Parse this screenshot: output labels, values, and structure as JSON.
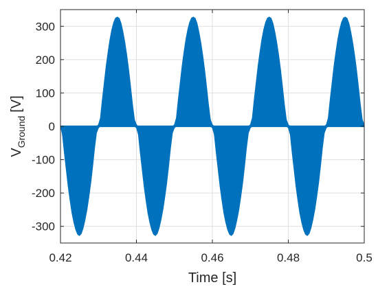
{
  "chart_data": {
    "type": "area",
    "xlabel": "Time [s]",
    "ylabel": {
      "main": "V",
      "subscript": "Ground",
      "unit": "[V]"
    },
    "xlim": [
      0.42,
      0.5
    ],
    "ylim": [
      -350,
      350
    ],
    "xticks": [
      "0.42",
      "0.44",
      "0.46",
      "0.48",
      "0.5"
    ],
    "yticks": [
      "-300",
      "-200",
      "-100",
      "0",
      "100",
      "200",
      "300"
    ],
    "grid": true,
    "color": "#0072BD",
    "series": [
      {
        "fill_between": true,
        "points": [
          [
            0.42,
            0,
            0
          ],
          [
            0.4205,
            -25,
            0
          ],
          [
            0.421,
            -80,
            0
          ],
          [
            0.4215,
            -130,
            0
          ],
          [
            0.422,
            -180,
            0
          ],
          [
            0.4225,
            -222,
            0
          ],
          [
            0.423,
            -260,
            0
          ],
          [
            0.4235,
            -288,
            0
          ],
          [
            0.424,
            -310,
            0
          ],
          [
            0.4245,
            -324,
            0
          ],
          [
            0.425,
            -328,
            0
          ],
          [
            0.4255,
            -322,
            0
          ],
          [
            0.426,
            -305,
            0
          ],
          [
            0.4265,
            -280,
            0
          ],
          [
            0.427,
            -250,
            0
          ],
          [
            0.4275,
            -212,
            0
          ],
          [
            0.428,
            -170,
            0
          ],
          [
            0.4285,
            -120,
            0
          ],
          [
            0.429,
            -65,
            0
          ],
          [
            0.4295,
            -20,
            0
          ],
          [
            0.43,
            -5,
            5
          ],
          [
            0.4305,
            0,
            25
          ],
          [
            0.431,
            0,
            80
          ],
          [
            0.4315,
            0,
            130
          ],
          [
            0.432,
            0,
            180
          ],
          [
            0.4325,
            0,
            222
          ],
          [
            0.433,
            0,
            260
          ],
          [
            0.4335,
            0,
            290
          ],
          [
            0.434,
            0,
            312
          ],
          [
            0.4345,
            0,
            325
          ],
          [
            0.435,
            0,
            328
          ],
          [
            0.4355,
            0,
            324
          ],
          [
            0.436,
            0,
            308
          ],
          [
            0.4365,
            0,
            282
          ],
          [
            0.437,
            0,
            250
          ],
          [
            0.4375,
            0,
            212
          ],
          [
            0.438,
            0,
            168
          ],
          [
            0.4385,
            0,
            118
          ],
          [
            0.439,
            0,
            65
          ],
          [
            0.4395,
            0,
            20
          ],
          [
            0.44,
            -5,
            5
          ],
          [
            0.4405,
            -25,
            0
          ],
          [
            0.441,
            -80,
            0
          ],
          [
            0.4415,
            -130,
            0
          ],
          [
            0.442,
            -180,
            0
          ],
          [
            0.4425,
            -222,
            0
          ],
          [
            0.443,
            -260,
            0
          ],
          [
            0.4435,
            -288,
            0
          ],
          [
            0.444,
            -310,
            0
          ],
          [
            0.4445,
            -324,
            0
          ],
          [
            0.445,
            -328,
            0
          ],
          [
            0.4455,
            -322,
            0
          ],
          [
            0.446,
            -305,
            0
          ],
          [
            0.4465,
            -280,
            0
          ],
          [
            0.447,
            -250,
            0
          ],
          [
            0.4475,
            -212,
            0
          ],
          [
            0.448,
            -170,
            0
          ],
          [
            0.4485,
            -120,
            0
          ],
          [
            0.449,
            -65,
            0
          ],
          [
            0.4495,
            -20,
            0
          ],
          [
            0.45,
            -5,
            5
          ],
          [
            0.4505,
            0,
            25
          ],
          [
            0.451,
            0,
            80
          ],
          [
            0.4515,
            0,
            130
          ],
          [
            0.452,
            0,
            180
          ],
          [
            0.4525,
            0,
            222
          ],
          [
            0.453,
            0,
            260
          ],
          [
            0.4535,
            0,
            290
          ],
          [
            0.454,
            0,
            312
          ],
          [
            0.4545,
            0,
            325
          ],
          [
            0.455,
            0,
            328
          ],
          [
            0.4555,
            0,
            324
          ],
          [
            0.456,
            0,
            308
          ],
          [
            0.4565,
            0,
            282
          ],
          [
            0.457,
            0,
            250
          ],
          [
            0.4575,
            0,
            212
          ],
          [
            0.458,
            0,
            168
          ],
          [
            0.4585,
            0,
            118
          ],
          [
            0.459,
            0,
            65
          ],
          [
            0.4595,
            0,
            20
          ],
          [
            0.46,
            -5,
            5
          ],
          [
            0.4605,
            -25,
            0
          ],
          [
            0.461,
            -80,
            0
          ],
          [
            0.4615,
            -130,
            0
          ],
          [
            0.462,
            -180,
            0
          ],
          [
            0.4625,
            -222,
            0
          ],
          [
            0.463,
            -260,
            0
          ],
          [
            0.4635,
            -288,
            0
          ],
          [
            0.464,
            -310,
            0
          ],
          [
            0.4645,
            -324,
            0
          ],
          [
            0.465,
            -328,
            0
          ],
          [
            0.4655,
            -322,
            0
          ],
          [
            0.466,
            -305,
            0
          ],
          [
            0.4665,
            -280,
            0
          ],
          [
            0.467,
            -250,
            0
          ],
          [
            0.4675,
            -212,
            0
          ],
          [
            0.468,
            -170,
            0
          ],
          [
            0.4685,
            -120,
            0
          ],
          [
            0.469,
            -65,
            0
          ],
          [
            0.4695,
            -20,
            0
          ],
          [
            0.47,
            -5,
            5
          ],
          [
            0.4705,
            0,
            25
          ],
          [
            0.471,
            0,
            80
          ],
          [
            0.4715,
            0,
            130
          ],
          [
            0.472,
            0,
            180
          ],
          [
            0.4725,
            0,
            222
          ],
          [
            0.473,
            0,
            260
          ],
          [
            0.4735,
            0,
            290
          ],
          [
            0.474,
            0,
            312
          ],
          [
            0.4745,
            0,
            325
          ],
          [
            0.475,
            0,
            328
          ],
          [
            0.4755,
            0,
            324
          ],
          [
            0.476,
            0,
            308
          ],
          [
            0.4765,
            0,
            282
          ],
          [
            0.477,
            0,
            250
          ],
          [
            0.4775,
            0,
            212
          ],
          [
            0.478,
            0,
            168
          ],
          [
            0.4785,
            0,
            118
          ],
          [
            0.479,
            0,
            65
          ],
          [
            0.4795,
            0,
            20
          ],
          [
            0.48,
            -5,
            5
          ],
          [
            0.4805,
            -25,
            0
          ],
          [
            0.481,
            -80,
            0
          ],
          [
            0.4815,
            -130,
            0
          ],
          [
            0.482,
            -180,
            0
          ],
          [
            0.4825,
            -222,
            0
          ],
          [
            0.483,
            -260,
            0
          ],
          [
            0.4835,
            -288,
            0
          ],
          [
            0.484,
            -310,
            0
          ],
          [
            0.4845,
            -324,
            0
          ],
          [
            0.485,
            -328,
            0
          ],
          [
            0.4855,
            -322,
            0
          ],
          [
            0.486,
            -305,
            0
          ],
          [
            0.4865,
            -280,
            0
          ],
          [
            0.487,
            -250,
            0
          ],
          [
            0.4875,
            -212,
            0
          ],
          [
            0.488,
            -170,
            0
          ],
          [
            0.4885,
            -120,
            0
          ],
          [
            0.489,
            -65,
            0
          ],
          [
            0.4895,
            -20,
            0
          ],
          [
            0.49,
            -5,
            5
          ],
          [
            0.4905,
            0,
            25
          ],
          [
            0.491,
            0,
            80
          ],
          [
            0.4915,
            0,
            130
          ],
          [
            0.492,
            0,
            180
          ],
          [
            0.4925,
            0,
            222
          ],
          [
            0.493,
            0,
            260
          ],
          [
            0.4935,
            0,
            290
          ],
          [
            0.494,
            0,
            312
          ],
          [
            0.4945,
            0,
            325
          ],
          [
            0.495,
            0,
            328
          ],
          [
            0.4955,
            0,
            324
          ],
          [
            0.496,
            0,
            308
          ],
          [
            0.4965,
            0,
            282
          ],
          [
            0.497,
            0,
            250
          ],
          [
            0.4975,
            0,
            212
          ],
          [
            0.498,
            0,
            168
          ],
          [
            0.4985,
            0,
            118
          ],
          [
            0.499,
            0,
            65
          ],
          [
            0.4995,
            0,
            20
          ],
          [
            0.5,
            0,
            5
          ]
        ]
      }
    ]
  }
}
